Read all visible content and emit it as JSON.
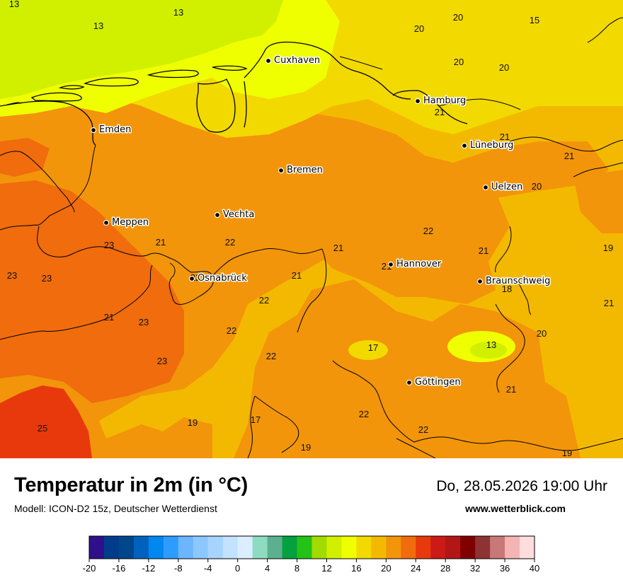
{
  "map": {
    "title": "Temperatur in 2m (in °C)",
    "model": "Modell: ICON-D2 15z, Deutscher Wetterdienst",
    "datetime": "Do, 28.05.2026 19:00 Uhr",
    "website": "www.wetterblick.com",
    "cities": [
      {
        "name": "Cuxhaven"
      },
      {
        "name": "Hamburg"
      },
      {
        "name": "Emden"
      },
      {
        "name": "Lüneburg"
      },
      {
        "name": "Bremen"
      },
      {
        "name": "Uelzen"
      },
      {
        "name": "Vechta"
      },
      {
        "name": "Meppen"
      },
      {
        "name": "Hannover"
      },
      {
        "name": "Osnabrück"
      },
      {
        "name": "Braunschweig"
      },
      {
        "name": "Göttingen"
      }
    ],
    "temperature_labels": [
      "13",
      "13",
      "13",
      "20",
      "20",
      "20",
      "15",
      "21",
      "21",
      "20",
      "21",
      "20",
      "23",
      "21",
      "22",
      "21",
      "22",
      "21",
      "19",
      "23",
      "23",
      "21",
      "22",
      "21",
      "22",
      "18",
      "21",
      "21",
      "23",
      "22",
      "20",
      "17",
      "13",
      "23",
      "22",
      "21",
      "25",
      "19",
      "17",
      "22",
      "22",
      "19",
      "19"
    ]
  },
  "legend": {
    "ticks": [
      "-20",
      "-16",
      "-12",
      "-8",
      "-4",
      "0",
      "4",
      "8",
      "12",
      "16",
      "20",
      "24",
      "28",
      "32",
      "36",
      "40"
    ],
    "colors": [
      "#300f8c",
      "#003c8a",
      "#00468a",
      "#0062bd",
      "#0087f0",
      "#2e9cff",
      "#6cb6ff",
      "#8cc8ff",
      "#a6d4ff",
      "#c2e2ff",
      "#dbeeff",
      "#8fdbc2",
      "#5db08f",
      "#05a040",
      "#23c217",
      "#a2db03",
      "#d0f000",
      "#f0ff00",
      "#f2d900",
      "#f3b900",
      "#f2950a",
      "#f06c0d",
      "#e8390d",
      "#cc1a16",
      "#b21616",
      "#800000",
      "#8d3333",
      "#c87878",
      "#f4b4b4",
      "#ffdddd"
    ]
  }
}
